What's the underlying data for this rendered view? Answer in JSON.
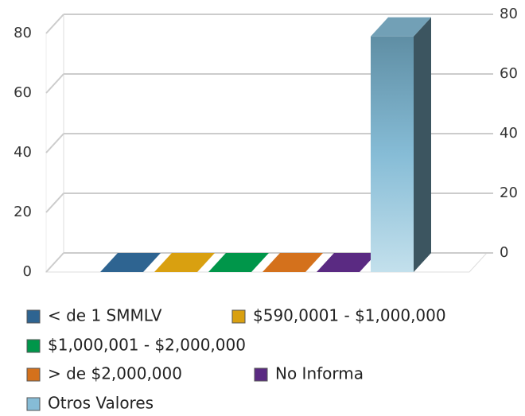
{
  "chart_data": {
    "type": "bar3d",
    "series": [
      {
        "name": "< de 1 SMMLV",
        "color": "#2e6491",
        "values": [
          0
        ]
      },
      {
        "name": "$590,0001 - $1,000,000",
        "color": "#d9a010",
        "values": [
          0
        ]
      },
      {
        "name": "$1,000,001 - $2,000,000",
        "color": "#00964a",
        "values": [
          0
        ]
      },
      {
        "name": "> de $2,000,000",
        "color": "#d4711c",
        "values": [
          0
        ]
      },
      {
        "name": "No Informa",
        "color": "#5a2a82",
        "values": [
          0
        ]
      },
      {
        "name": "Otros Valores",
        "color": "#86bcd6",
        "values": [
          79
        ]
      }
    ],
    "ylim": [
      0,
      80
    ],
    "yticks": [
      0,
      20,
      40,
      60,
      80
    ],
    "y2lim": [
      0,
      80
    ],
    "y2ticks": [
      0,
      20,
      40,
      60,
      80
    ],
    "grid": true,
    "legend": "bottom"
  }
}
